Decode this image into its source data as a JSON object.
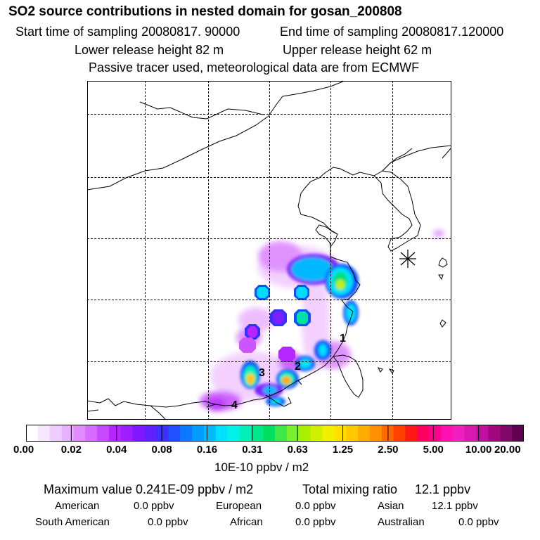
{
  "header": {
    "title": "SO2 source contributions in nested domain for gosan_200808",
    "start_time": "Start time of sampling 20080817. 90000",
    "end_time": "End time of sampling 20080817.120000",
    "lower_release": "Lower release height   82 m",
    "upper_release": "Upper release height   62 m",
    "tracer_note": "Passive tracer used, meteorological data are from ECMWF"
  },
  "chart_data": {
    "type": "heatmap",
    "title": "SO2 source contributions in nested domain for gosan_200808",
    "units": "10E-10 ppbv / m2",
    "colorbar_ticks": [
      "0.00",
      "0.02",
      "0.04",
      "0.08",
      "0.16",
      "0.31",
      "0.63",
      "1.25",
      "2.50",
      "5.00",
      "10.00",
      "20.00"
    ],
    "colorbar_colors": [
      "#ffffff",
      "#f7e6ff",
      "#efccff",
      "#e7b3ff",
      "#e08cff",
      "#d56bff",
      "#c84aff",
      "#b625ff",
      "#9d1eff",
      "#7f18ff",
      "#6020ff",
      "#3a30ff",
      "#2050ff",
      "#0a78ff",
      "#009cff",
      "#00bcff",
      "#00e0ff",
      "#00f2e8",
      "#00f0b8",
      "#00e888",
      "#00e060",
      "#40e848",
      "#78f030",
      "#a8f000",
      "#d0f000",
      "#f0f000",
      "#ffe000",
      "#ffc800",
      "#ffac00",
      "#ff9000",
      "#ff6800",
      "#ff4000",
      "#ff1818",
      "#ff0060",
      "#ff0090",
      "#ff10b0",
      "#f020c0",
      "#d818b0",
      "#c010a0",
      "#a00880",
      "#800868",
      "#600050"
    ],
    "labels": [
      "1",
      "2",
      "3",
      "4"
    ],
    "max_value": "Maximum value  0.241E-09 ppbv / m2",
    "total_label": "Total mixing ratio",
    "total_value": "12.1 ppbv"
  },
  "contributions": [
    {
      "label": "American",
      "value": "0.0 ppbv"
    },
    {
      "label": "European",
      "value": "0.0 ppbv"
    },
    {
      "label": "Asian",
      "value": "12.1 ppbv"
    },
    {
      "label": "South American",
      "value": "0.0 ppbv"
    },
    {
      "label": "African",
      "value": "0.0 ppbv"
    },
    {
      "label": "Australian",
      "value": "0.0 ppbv"
    }
  ]
}
